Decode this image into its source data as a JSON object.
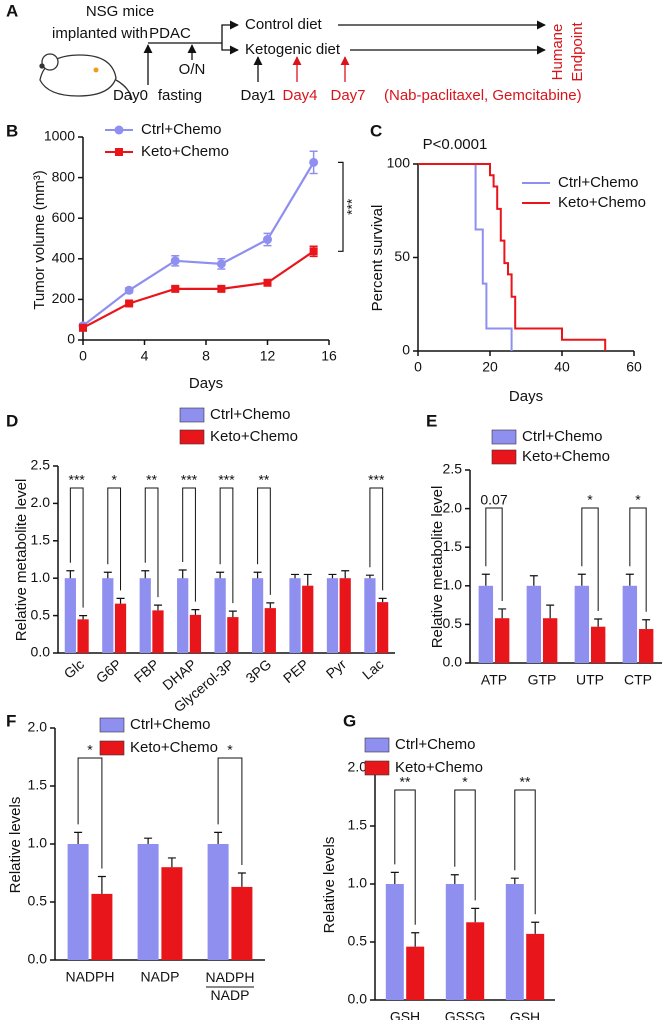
{
  "diagram": {
    "panel": "A",
    "mouse_line_1": "NSG mice",
    "mouse_line_2": "implanted with",
    "mouse_line_3": "PDAC",
    "arm_1": "Control diet",
    "arm_2": "Ketogenic diet",
    "fasting_1": "O/N",
    "fasting_2": "fasting",
    "day_0": "Day0",
    "day_1": "Day1",
    "day_4": "Day4",
    "day_7": "Day7",
    "treatment": "(Nab-paclitaxel, Gemcitabine)",
    "endpoint_1": "Humane",
    "endpoint_2": "Endpoint"
  },
  "chart_data": [
    {
      "type": "line",
      "panel": "B",
      "x_label": "Days",
      "y_label": "Tumor volume (mm³)",
      "x": [
        0,
        3,
        6,
        9,
        12,
        15
      ],
      "xlim": [
        0,
        16
      ],
      "xticks": [
        0,
        4,
        8,
        12,
        16
      ],
      "ylim": [
        0,
        1000
      ],
      "yticks": [
        0,
        200,
        400,
        600,
        800,
        1000
      ],
      "series": [
        {
          "name": "Ctrl+Chemo",
          "color": "#8f8ff0",
          "values": [
            70,
            245,
            390,
            375,
            495,
            875
          ],
          "errors": [
            10,
            12,
            25,
            25,
            30,
            55
          ]
        },
        {
          "name": "Keto+Chemo",
          "color": "#e8151b",
          "values": [
            60,
            180,
            252,
            252,
            282,
            437
          ],
          "errors": [
            5,
            8,
            10,
            12,
            12,
            25
          ]
        }
      ],
      "annotations": [
        {
          "label": "***"
        }
      ]
    },
    {
      "type": "step",
      "panel": "C",
      "x_label": "Days",
      "y_label": "Percent survival",
      "annotation": "P<0.0001",
      "xlim": [
        0,
        60
      ],
      "xticks": [
        0,
        20,
        40,
        60
      ],
      "ylim": [
        0,
        100
      ],
      "yticks": [
        0,
        50,
        100
      ],
      "series": [
        {
          "name": "Ctrl+Chemo",
          "color": "#8f8ff0",
          "x": [
            0,
            16,
            18,
            19,
            26
          ],
          "values": [
            100,
            65,
            36,
            12,
            0
          ]
        },
        {
          "name": "Keto+Chemo",
          "color": "#e8151b",
          "x": [
            0,
            20,
            21,
            22,
            23,
            24,
            25,
            26,
            27,
            40,
            52
          ],
          "values": [
            100,
            94,
            88,
            76,
            59,
            47,
            41,
            29,
            12,
            6,
            0
          ]
        }
      ]
    },
    {
      "type": "bar",
      "panel": "D",
      "y_label": "Relative metabolite level",
      "categories": [
        "Glc",
        "G6P",
        "FBP",
        "DHAP",
        "Glycerol-3P",
        "3PG",
        "PEP",
        "Pyr",
        "Lac"
      ],
      "ylim": [
        0,
        2.5
      ],
      "yticks": [
        {
          "value": 0,
          "label": "0.0"
        },
        0.5,
        {
          "value": 1,
          "label": "1.0"
        },
        1.5,
        {
          "value": 2,
          "label": "2.0"
        },
        2.5
      ],
      "series": [
        {
          "name": "Ctrl+Chemo",
          "color": "#8f8ff0",
          "values": [
            1,
            1,
            1,
            1,
            1,
            1,
            1,
            1,
            1
          ],
          "errors": [
            0.1,
            0.08,
            0.1,
            0.11,
            0.08,
            0.08,
            0.05,
            0.05,
            0.04
          ]
        },
        {
          "name": "Keto+Chemo",
          "color": "#e8151b",
          "values": [
            0.45,
            0.66,
            0.57,
            0.51,
            0.48,
            0.6,
            0.9,
            1,
            0.68
          ],
          "errors": [
            0.05,
            0.07,
            0.07,
            0.07,
            0.08,
            0.07,
            0.15,
            0.1,
            0.05
          ]
        }
      ],
      "annotations": [
        {
          "category": 0,
          "label": "***"
        },
        {
          "category": 1,
          "label": "*"
        },
        {
          "category": 2,
          "label": "**"
        },
        {
          "category": 3,
          "label": "***"
        },
        {
          "category": 4,
          "label": "***"
        },
        {
          "category": 5,
          "label": "**"
        },
        {
          "category": 8,
          "label": "***"
        }
      ]
    },
    {
      "type": "bar",
      "panel": "E",
      "y_label": "Relative metabolite level",
      "categories": [
        "ATP",
        "GTP",
        "UTP",
        "CTP"
      ],
      "ylim": [
        0,
        2.5
      ],
      "yticks": [
        {
          "value": 0,
          "label": "0.0"
        },
        0.5,
        {
          "value": 1,
          "label": "1.0"
        },
        1.5,
        {
          "value": 2,
          "label": "2.0"
        },
        2.5
      ],
      "series": [
        {
          "name": "Ctrl+Chemo",
          "color": "#8f8ff0",
          "values": [
            1,
            1,
            1,
            1
          ],
          "errors": [
            0.15,
            0.13,
            0.15,
            0.15
          ]
        },
        {
          "name": "Keto+Chemo",
          "color": "#e8151b",
          "values": [
            0.58,
            0.58,
            0.47,
            0.44
          ],
          "errors": [
            0.12,
            0.17,
            0.1,
            0.12
          ]
        }
      ],
      "annotations": [
        {
          "category": 0,
          "label": "0.07"
        },
        {
          "category": 2,
          "label": "*"
        },
        {
          "category": 3,
          "label": "*"
        }
      ]
    },
    {
      "type": "bar",
      "panel": "F",
      "y_label": "Relative levels",
      "categories": [
        "NADPH",
        "NADP",
        "NADPH/NADP"
      ],
      "ylim": [
        0,
        2
      ],
      "yticks": [
        {
          "value": 0,
          "label": "0.0"
        },
        0.5,
        {
          "value": 1,
          "label": "1.0"
        },
        1.5,
        {
          "value": 2,
          "label": "2.0"
        }
      ],
      "series": [
        {
          "name": "Ctrl+Chemo",
          "color": "#8f8ff0",
          "values": [
            1,
            1,
            1
          ],
          "errors": [
            0.1,
            0.05,
            0.1
          ]
        },
        {
          "name": "Keto+Chemo",
          "color": "#e8151b",
          "values": [
            0.57,
            0.8,
            0.63
          ],
          "errors": [
            0.15,
            0.08,
            0.12
          ]
        }
      ],
      "annotations": [
        {
          "category": 0,
          "label": "*"
        },
        {
          "category": 2,
          "label": "*"
        }
      ]
    },
    {
      "type": "bar",
      "panel": "G",
      "y_label": "Relative levels",
      "categories": [
        "GSH",
        "GSSG",
        "GSH/GSSG"
      ],
      "ylim": [
        0,
        2
      ],
      "yticks": [
        {
          "value": 0,
          "label": "0.0"
        },
        0.5,
        {
          "value": 1,
          "label": "1.0"
        },
        1.5,
        {
          "value": 2,
          "label": "2.0"
        }
      ],
      "series": [
        {
          "name": "Ctrl+Chemo",
          "color": "#8f8ff0",
          "values": [
            1,
            1,
            1
          ],
          "errors": [
            0.1,
            0.08,
            0.05
          ]
        },
        {
          "name": "Keto+Chemo",
          "color": "#e8151b",
          "values": [
            0.46,
            0.67,
            0.57
          ],
          "errors": [
            0.12,
            0.12,
            0.1
          ]
        }
      ],
      "annotations": [
        {
          "category": 0,
          "label": "**"
        },
        {
          "category": 1,
          "label": "*"
        },
        {
          "category": 2,
          "label": "**"
        }
      ]
    }
  ]
}
